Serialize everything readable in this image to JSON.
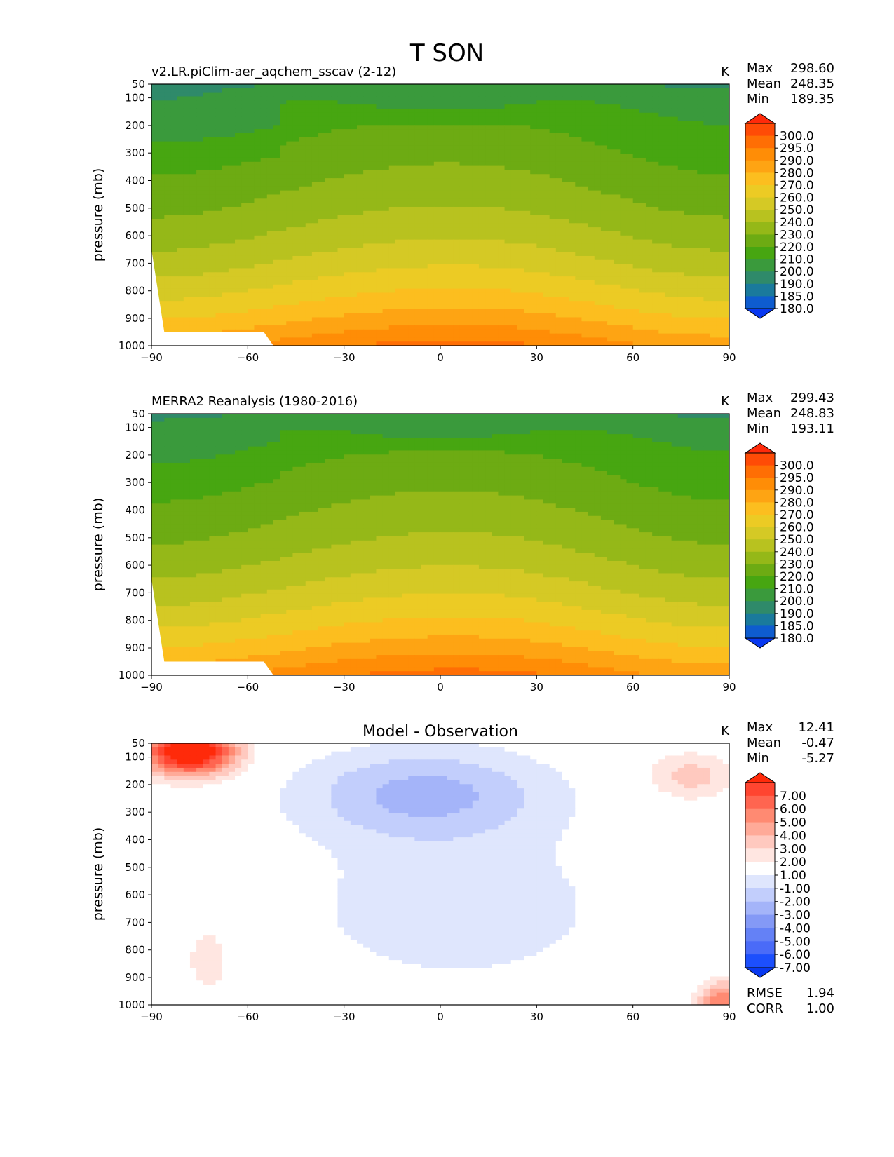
{
  "figure_title": "T SON",
  "colorbar_labels": {
    "abs": [
      "300.0",
      "295.0",
      "290.0",
      "280.0",
      "270.0",
      "260.0",
      "250.0",
      "240.0",
      "230.0",
      "220.0",
      "210.0",
      "200.0",
      "190.0",
      "185.0",
      "180.0"
    ],
    "diff": [
      "7.00",
      "6.00",
      "5.00",
      "4.00",
      "3.00",
      "2.00",
      "1.00",
      "-1.00",
      "-2.00",
      "-3.00",
      "-4.00",
      "-5.00",
      "-6.00",
      "-7.00"
    ]
  },
  "colorbar_colors": {
    "abs": [
      "#ff2a0a",
      "#ff4b06",
      "#ff6e04",
      "#ff8d06",
      "#fea413",
      "#fcbe1f",
      "#eccb24",
      "#d5c925",
      "#b8c21f",
      "#95b818",
      "#6dab13",
      "#47a611",
      "#3a9a3c",
      "#2f8a6a",
      "#1a7a9c",
      "#0e5ccf",
      "#0838f0"
    ],
    "diff": [
      "#ff2a0a",
      "#ff4530",
      "#ff6550",
      "#ff8a72",
      "#ffaa98",
      "#ffc9bf",
      "#ffe6e1",
      "#ffffff",
      "#dfe6fd",
      "#c2cefc",
      "#a4b4f9",
      "#8499f6",
      "#6481f6",
      "#4a6bf8",
      "#1c4ffd",
      "#0838f0"
    ]
  },
  "xtick_labels": [
    "−90",
    "−60",
    "−30",
    "0",
    "30",
    "60",
    "90"
  ],
  "ytick_labels": [
    "50",
    "100",
    "200",
    "300",
    "400",
    "500",
    "600",
    "700",
    "800",
    "900",
    "1000"
  ],
  "chart_data": [
    {
      "type": "heatmap",
      "title": "v2.LR.piClim-aer_aqchem_sscav (2-12)",
      "units": "K",
      "ylabel": "pressure (mb)",
      "xlim": [
        -90,
        90
      ],
      "ylim": [
        1000,
        50
      ],
      "stats": [
        {
          "label": "Max",
          "value": "298.60"
        },
        {
          "label": "Mean",
          "value": "248.35"
        },
        {
          "label": "Min",
          "value": "189.35"
        }
      ],
      "colorbar": "abs",
      "field": "model"
    },
    {
      "type": "heatmap",
      "title": "MERRA2 Reanalysis (1980-2016)",
      "units": "K",
      "ylabel": "pressure (mb)",
      "xlim": [
        -90,
        90
      ],
      "ylim": [
        1000,
        50
      ],
      "stats": [
        {
          "label": "Max",
          "value": "299.43"
        },
        {
          "label": "Mean",
          "value": "248.83"
        },
        {
          "label": "Min",
          "value": "193.11"
        }
      ],
      "colorbar": "abs",
      "field": "obs"
    },
    {
      "type": "heatmap",
      "title": "Model - Observation",
      "units": "K",
      "ylabel": "pressure (mb)",
      "xlim": [
        -90,
        90
      ],
      "ylim": [
        1000,
        50
      ],
      "stats": [
        {
          "label": "Max",
          "value": "12.41"
        },
        {
          "label": "Mean",
          "value": "-0.47"
        },
        {
          "label": "Min",
          "value": "-5.27"
        }
      ],
      "extra_stats": [
        {
          "label": "RMSE",
          "value": "1.94"
        },
        {
          "label": "CORR",
          "value": "1.00"
        }
      ],
      "colorbar": "diff",
      "field": "diff"
    }
  ]
}
